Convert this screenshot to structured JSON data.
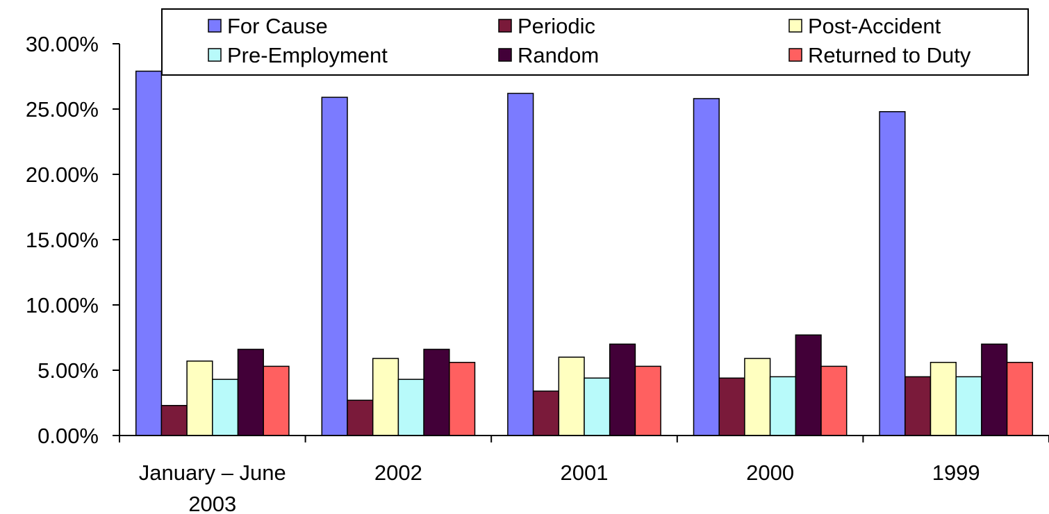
{
  "chart_data": {
    "type": "bar",
    "title": "",
    "xlabel": "",
    "ylabel": "",
    "ylim": [
      0,
      0.3
    ],
    "y_ticks": [
      "0.00%",
      "5.00%",
      "10.00%",
      "15.00%",
      "20.00%",
      "25.00%",
      "30.00%"
    ],
    "categories": [
      [
        "January – June",
        "2003"
      ],
      [
        "2002"
      ],
      [
        "2001"
      ],
      [
        "2000"
      ],
      [
        "1999"
      ]
    ],
    "series": [
      {
        "name": "For Cause",
        "color": "#7b7bff",
        "values": [
          0.279,
          0.259,
          0.262,
          0.258,
          0.248
        ]
      },
      {
        "name": "Periodic",
        "color": "#7a1a3a",
        "values": [
          0.023,
          0.027,
          0.034,
          0.044,
          0.045
        ]
      },
      {
        "name": "Post-Accident",
        "color": "#ffffc0",
        "values": [
          0.057,
          0.059,
          0.06,
          0.059,
          0.056
        ]
      },
      {
        "name": "Pre-Employment",
        "color": "#b8fafa",
        "values": [
          0.043,
          0.043,
          0.044,
          0.045,
          0.045
        ]
      },
      {
        "name": "Random",
        "color": "#420038",
        "values": [
          0.066,
          0.066,
          0.07,
          0.077,
          0.07
        ]
      },
      {
        "name": "Returned to Duty",
        "color": "#ff6060",
        "values": [
          0.053,
          0.056,
          0.053,
          0.053,
          0.056
        ]
      }
    ],
    "legend": {
      "position": "top",
      "columns": 3
    },
    "grid": false
  }
}
